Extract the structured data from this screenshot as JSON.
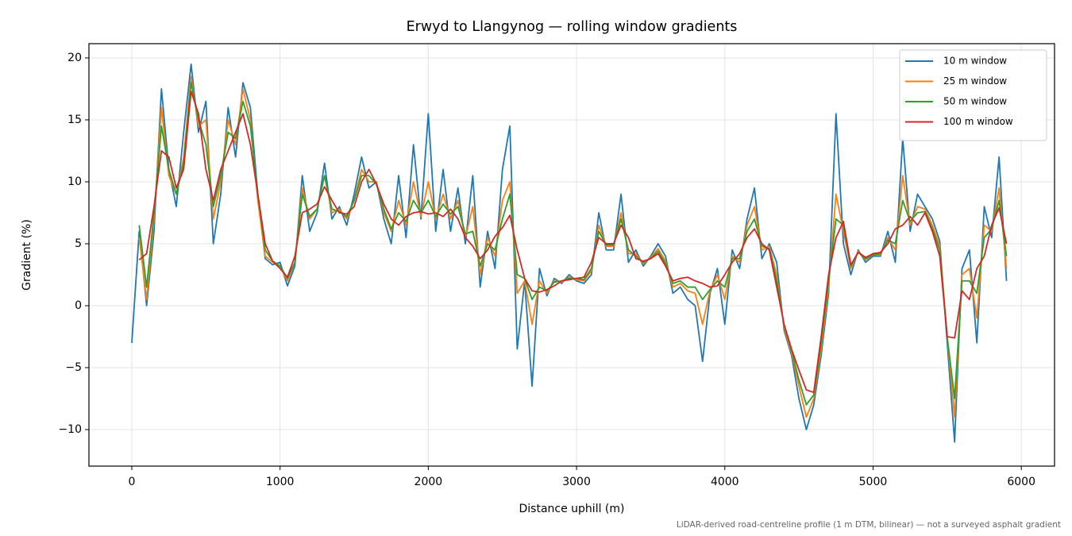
{
  "chart_data": {
    "type": "line",
    "title": "Erwyd to Llangynog — rolling window gradients",
    "x_label": "Distance uphill (m)",
    "y_label": "Gradient (%)",
    "footnote": "LiDAR-derived road-centreline profile (1 m DTM, bilinear) — not a surveyed asphalt gradient",
    "xlim": [
      -289,
      6224
    ],
    "ylim": [
      -12.95,
      21.15
    ],
    "xticks": [
      0,
      1000,
      2000,
      3000,
      4000,
      5000,
      6000
    ],
    "yticks": [
      {
        "value": -10,
        "label": "−10"
      },
      {
        "value": -5,
        "label": "−5"
      },
      0,
      5,
      10,
      15,
      20
    ],
    "grid": true,
    "legend": "upper right",
    "x": [
      0,
      50,
      100,
      150,
      200,
      250,
      300,
      350,
      400,
      450,
      500,
      550,
      600,
      650,
      700,
      750,
      800,
      850,
      900,
      950,
      1000,
      1050,
      1100,
      1150,
      1200,
      1250,
      1300,
      1350,
      1400,
      1450,
      1500,
      1550,
      1600,
      1650,
      1700,
      1750,
      1800,
      1850,
      1900,
      1950,
      2000,
      2050,
      2100,
      2150,
      2200,
      2250,
      2300,
      2350,
      2400,
      2450,
      2500,
      2550,
      2600,
      2650,
      2700,
      2750,
      2800,
      2850,
      2900,
      2950,
      3000,
      3050,
      3100,
      3150,
      3200,
      3250,
      3300,
      3350,
      3400,
      3450,
      3500,
      3550,
      3600,
      3650,
      3700,
      3750,
      3800,
      3850,
      3900,
      3950,
      4000,
      4050,
      4100,
      4150,
      4200,
      4250,
      4300,
      4350,
      4400,
      4450,
      4500,
      4550,
      4600,
      4650,
      4700,
      4750,
      4800,
      4850,
      4900,
      4950,
      5000,
      5050,
      5100,
      5150,
      5200,
      5250,
      5300,
      5350,
      5400,
      5450,
      5500,
      5550,
      5600,
      5650,
      5700,
      5750,
      5800,
      5850,
      5900
    ],
    "series": [
      {
        "name": "10 m window",
        "color": "#1f77b4",
        "values": [
          -3,
          6,
          0,
          6,
          17.5,
          11,
          8,
          14,
          19.5,
          14,
          16.5,
          5,
          9,
          16,
          12,
          18,
          16,
          9,
          3.8,
          3.3,
          3.5,
          1.6,
          3.2,
          10.5,
          6,
          7.5,
          11.5,
          7,
          8,
          6.5,
          9,
          12,
          9.5,
          10,
          7,
          5,
          10.5,
          5.5,
          13,
          7,
          15.5,
          6,
          11,
          6,
          9.5,
          5,
          10.5,
          1.5,
          6,
          3,
          11,
          14.5,
          -3.5,
          2,
          -6.5,
          3,
          0.8,
          2.2,
          1.8,
          2.5,
          2,
          1.8,
          2.5,
          7.5,
          4.5,
          4.5,
          9,
          3.5,
          4.5,
          3.2,
          4,
          5,
          4,
          1,
          1.5,
          0.5,
          0,
          -4.5,
          1,
          3,
          -1.5,
          4.5,
          3,
          7,
          9.5,
          3.8,
          5,
          3.5,
          -2,
          -4,
          -7.5,
          -10,
          -8,
          -4,
          1,
          15.5,
          5,
          2.5,
          4.5,
          3.5,
          4,
          4,
          6,
          3.5,
          13.5,
          6,
          9,
          8,
          7,
          5.2,
          -3,
          -11,
          3,
          4.5,
          -3,
          8,
          5.5,
          12,
          2
        ]
      },
      {
        "name": "25 m window",
        "color": "#ff7f0e",
        "values": [
          null,
          5.5,
          0.5,
          7,
          16,
          10.5,
          9,
          12,
          18.5,
          14.5,
          15,
          7,
          10,
          15,
          13,
          17.5,
          15,
          8.5,
          4,
          3.5,
          3.2,
          2,
          3.5,
          9.5,
          7,
          7.8,
          10.5,
          7.5,
          7.8,
          7,
          8.5,
          11,
          10,
          10,
          7.5,
          6,
          8.5,
          6.5,
          10,
          7.2,
          10,
          7,
          9,
          7,
          8.5,
          5.5,
          8,
          2.5,
          5.5,
          4,
          8.5,
          10,
          1,
          2,
          -1.5,
          2,
          1,
          2,
          1.9,
          2.3,
          2.1,
          2,
          2.8,
          6.5,
          4.8,
          4.8,
          7.5,
          4.2,
          4.2,
          3.4,
          3.9,
          4.6,
          3.6,
          1.5,
          1.8,
          1.2,
          1,
          -1.5,
          1.2,
          2.5,
          0.5,
          4,
          3.5,
          6.5,
          8,
          4.5,
          4.8,
          2.5,
          -1.8,
          -3.8,
          -6.5,
          -9,
          -7.5,
          -3.5,
          1.5,
          9,
          6,
          3,
          4.4,
          3.7,
          4.1,
          4.1,
          5.5,
          4.5,
          10.5,
          6.5,
          8,
          7.8,
          6.5,
          4.8,
          -2.5,
          -9,
          2.5,
          3,
          -1,
          6.5,
          6,
          9.5,
          3
        ]
      },
      {
        "name": "50 m window",
        "color": "#2ca02c",
        "values": [
          null,
          6.5,
          1.5,
          7.5,
          14.5,
          11,
          9,
          11.5,
          18,
          15,
          13,
          8,
          10.5,
          14,
          13.5,
          16.5,
          14.5,
          9,
          4.5,
          3.6,
          3.2,
          2.2,
          3.5,
          9,
          7.2,
          7.8,
          10.5,
          7.8,
          7.6,
          7.2,
          8.5,
          10.5,
          10.5,
          9.8,
          7.8,
          6.2,
          7.5,
          6.8,
          8.5,
          7.5,
          8.5,
          7.2,
          8.2,
          7.4,
          8,
          5.8,
          6,
          3.2,
          5,
          4.5,
          7,
          9,
          2.5,
          2.2,
          0.5,
          1.5,
          1.2,
          1.9,
          2,
          2.2,
          2.2,
          2.1,
          3,
          6,
          4.9,
          4.9,
          7,
          4.5,
          4,
          3.5,
          3.8,
          4.4,
          3.4,
          1.8,
          2,
          1.5,
          1.5,
          0.5,
          1.3,
          2,
          1.5,
          3.8,
          3.8,
          6,
          7,
          4.8,
          4.6,
          2,
          -1.6,
          -3.6,
          -6,
          -8,
          -7.2,
          -3,
          2,
          7,
          6.5,
          3.2,
          4.3,
          3.8,
          4.1,
          4.2,
          5.3,
          5,
          8.5,
          6.8,
          7.5,
          7.6,
          6.2,
          4.5,
          -2.5,
          -7.5,
          2,
          2,
          1,
          5.5,
          6.2,
          8.5,
          4
        ]
      },
      {
        "name": "100 m window",
        "color": "#d62728",
        "values": [
          null,
          3.7,
          4.2,
          8,
          12.5,
          12,
          9.5,
          11,
          17.3,
          15.5,
          11,
          8.5,
          11,
          12.5,
          14,
          15.5,
          13,
          9,
          5,
          3.6,
          3,
          2.3,
          4,
          7.5,
          7.8,
          8.2,
          9.6,
          8.5,
          7.5,
          7.4,
          8,
          10,
          11,
          9.8,
          8.2,
          7,
          6.5,
          7.2,
          7.5,
          7.6,
          7.4,
          7.5,
          7.2,
          7.8,
          7,
          5.5,
          4.8,
          3.8,
          4.5,
          5.6,
          6.3,
          7.3,
          4.5,
          2.2,
          1.2,
          1.1,
          1.3,
          1.6,
          2,
          2.1,
          2.2,
          2.3,
          3.5,
          5.5,
          5,
          5,
          6.5,
          5.5,
          3.8,
          3.6,
          3.8,
          4.2,
          3.2,
          2,
          2.2,
          2.3,
          2,
          1.8,
          1.5,
          1.6,
          2.5,
          3.5,
          4.2,
          5.5,
          6.2,
          5,
          4.5,
          1.5,
          -1.5,
          -3.5,
          -5.2,
          -6.8,
          -7,
          -2.5,
          2.5,
          5.5,
          6.8,
          3.3,
          4.3,
          3.9,
          4.2,
          4.3,
          5,
          6.2,
          6.5,
          7.2,
          6.5,
          7.5,
          6,
          4,
          -2.5,
          -2.6,
          1.2,
          0.5,
          3,
          4,
          6.5,
          7.9,
          5
        ]
      }
    ]
  }
}
